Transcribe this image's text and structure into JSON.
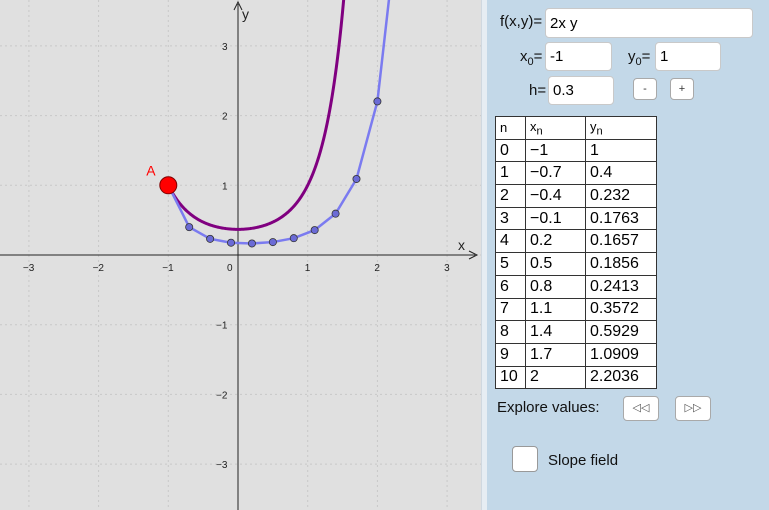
{
  "graph": {
    "x_axis_label": "x",
    "y_axis_label": "y",
    "x_ticks": [
      "−3",
      "−2",
      "−1",
      "0",
      "1",
      "2",
      "3"
    ],
    "y_ticks_pos": [
      "1",
      "2",
      "3"
    ],
    "y_ticks_neg": [
      "−1",
      "−2",
      "−3"
    ],
    "point_label": "A",
    "colors": {
      "exact_curve": "#800080",
      "euler_line": "#7b7bf0",
      "euler_points": "#6b6bd6",
      "point_a": "#ff0000"
    },
    "euler_points": [
      [
        -1,
        1
      ],
      [
        -0.7,
        0.4
      ],
      [
        -0.4,
        0.232
      ],
      [
        -0.1,
        0.1763
      ],
      [
        0.2,
        0.1657
      ],
      [
        0.5,
        0.1856
      ],
      [
        0.8,
        0.2413
      ],
      [
        1.1,
        0.3572
      ],
      [
        1.4,
        0.5929
      ],
      [
        1.7,
        1.0909
      ],
      [
        2,
        2.2036
      ]
    ]
  },
  "panel": {
    "f_label": "f(x,y)=",
    "f_value": "2x y",
    "x0_label_main": "x",
    "x0_label_sub": "0",
    "x0_eq": "=",
    "x0_value": "-1",
    "y0_label_main": "y",
    "y0_label_sub": "0",
    "y0_eq": "=",
    "y0_value": "1",
    "h_label": "h=",
    "h_value": "0.3",
    "minus_button": "-",
    "plus_button": "+",
    "table": {
      "headers": {
        "n": "n",
        "x": "x",
        "x_sub": "n",
        "y": "y",
        "y_sub": "n"
      },
      "rows": [
        {
          "n": "0",
          "x": "−1",
          "y": "1"
        },
        {
          "n": "1",
          "x": "−0.7",
          "y": "0.4"
        },
        {
          "n": "2",
          "x": "−0.4",
          "y": "0.232"
        },
        {
          "n": "3",
          "x": "−0.1",
          "y": "0.1763"
        },
        {
          "n": "4",
          "x": "0.2",
          "y": "0.1657"
        },
        {
          "n": "5",
          "x": "0.5",
          "y": "0.1856"
        },
        {
          "n": "6",
          "x": "0.8",
          "y": "0.2413"
        },
        {
          "n": "7",
          "x": "1.1",
          "y": "0.3572"
        },
        {
          "n": "8",
          "x": "1.4",
          "y": "0.5929"
        },
        {
          "n": "9",
          "x": "1.7",
          "y": "1.0909"
        },
        {
          "n": "10",
          "x": "2",
          "y": "2.2036"
        }
      ]
    },
    "explore_label": "Explore values:",
    "rewind_icon": "◁◁",
    "forward_icon": "▷▷",
    "slope_field_label": "Slope field",
    "slope_field_checked": false
  }
}
